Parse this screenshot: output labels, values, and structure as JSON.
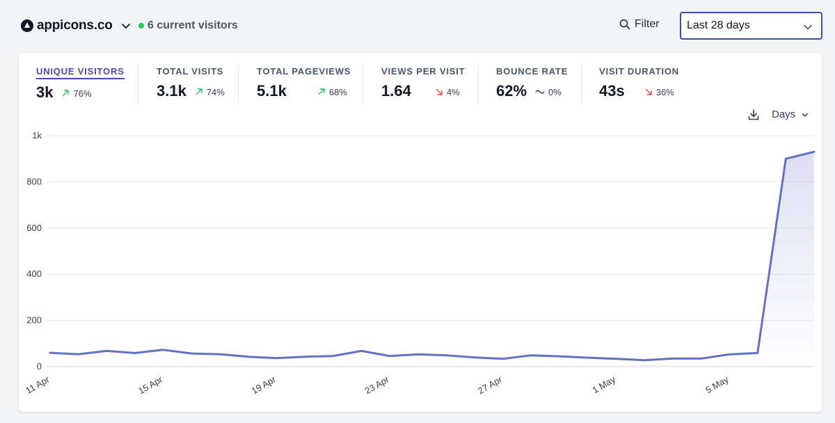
{
  "header": {
    "site_name": "appicons.co",
    "current_visitors": "6 current visitors",
    "filter_label": "Filter",
    "period_label": "Last 28 days"
  },
  "metrics": [
    {
      "label": "UNIQUE VISITORS",
      "value": "3k",
      "change": "76%",
      "direction": "up"
    },
    {
      "label": "TOTAL VISITS",
      "value": "3.1k",
      "change": "74%",
      "direction": "up"
    },
    {
      "label": "TOTAL PAGEVIEWS",
      "value": "5.1k",
      "change": "68%",
      "direction": "up"
    },
    {
      "label": "VIEWS PER VISIT",
      "value": "1.64",
      "change": "4%",
      "direction": "down"
    },
    {
      "label": "BOUNCE RATE",
      "value": "62%",
      "change": "0%",
      "direction": "flat"
    },
    {
      "label": "VISIT DURATION",
      "value": "43s",
      "change": "36%",
      "direction": "down"
    }
  ],
  "chart_controls": {
    "interval_label": "Days"
  },
  "colors": {
    "accent": "#6470c4",
    "up": "#22c55e",
    "down": "#ef4444",
    "live": "#22c55e"
  },
  "chart_data": {
    "type": "area",
    "title": "",
    "xlabel": "",
    "ylabel": "",
    "ylim": [
      0,
      1000
    ],
    "y_ticks": [
      0,
      200,
      400,
      600,
      800,
      1000
    ],
    "y_tick_labels": [
      "0",
      "200",
      "400",
      "600",
      "800",
      "1k"
    ],
    "x_tick_labels": [
      "11 Apr",
      "15 Apr",
      "19 Apr",
      "23 Apr",
      "27 Apr",
      "1 May",
      "5 May"
    ],
    "x_tick_indices": [
      0,
      4,
      8,
      12,
      16,
      20,
      24
    ],
    "series": [
      {
        "name": "Unique visitors",
        "values": [
          60,
          54,
          68,
          59,
          73,
          57,
          54,
          43,
          37,
          43,
          46,
          68,
          46,
          53,
          49,
          40,
          34,
          49,
          45,
          39,
          34,
          28,
          35,
          35,
          53,
          59,
          900,
          930
        ]
      }
    ]
  }
}
